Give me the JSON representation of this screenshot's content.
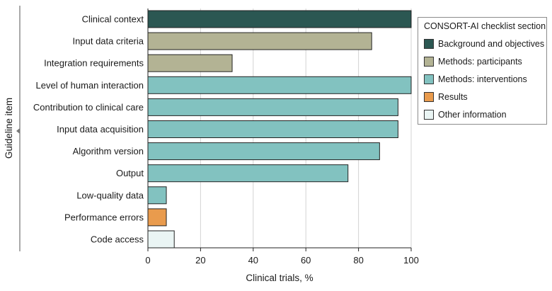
{
  "chart_data": {
    "type": "bar",
    "orientation": "horizontal",
    "xlabel": "Clinical trials, %",
    "ylabel": "Guideline item",
    "xlim": [
      0,
      100
    ],
    "xticks": [
      0,
      20,
      40,
      60,
      80,
      100
    ],
    "grid": "vertical",
    "categories": [
      "Clinical context",
      "Input data criteria",
      "Integration requirements",
      "Level of human interaction",
      "Contribution to clinical care",
      "Input data acquisition",
      "Algorithm version",
      "Output",
      "Low-quality data",
      "Performance errors",
      "Code access"
    ],
    "values": [
      100,
      85,
      32,
      100,
      95,
      95,
      88,
      76,
      7,
      7,
      10
    ],
    "section_of_bar": [
      0,
      1,
      1,
      2,
      2,
      2,
      2,
      2,
      2,
      3,
      4
    ],
    "legend": {
      "title": "CONSORT-AI checklist section",
      "placement": "top-right",
      "items": [
        {
          "name": "Background and objectives",
          "color": "#2b5752"
        },
        {
          "name": "Methods: participants",
          "color": "#b3b394"
        },
        {
          "name": "Methods: interventions",
          "color": "#82c2c0"
        },
        {
          "name": "Results",
          "color": "#e99b4d"
        },
        {
          "name": "Other information",
          "color": "#eaf5f4"
        }
      ]
    }
  }
}
